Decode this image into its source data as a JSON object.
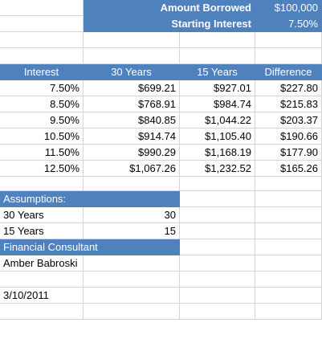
{
  "colors": {
    "header_fill": "#4f81bd",
    "header_text": "#ffffff",
    "gridline": "#d4d4d4"
  },
  "top": {
    "amount_label": "Amount Borrowed",
    "amount_value": "$100,000",
    "interest_label": "Starting Interest",
    "interest_value": "7.50%"
  },
  "table": {
    "headers": [
      "Interest",
      "30 Years",
      "15 Years",
      "Difference"
    ],
    "rows": [
      [
        "7.50%",
        "$699.21",
        "$927.01",
        "$227.80"
      ],
      [
        "8.50%",
        "$768.91",
        "$984.74",
        "$215.83"
      ],
      [
        "9.50%",
        "$840.85",
        "$1,044.22",
        "$203.37"
      ],
      [
        "10.50%",
        "$914.74",
        "$1,105.40",
        "$190.66"
      ],
      [
        "11.50%",
        "$990.29",
        "$1,168.19",
        "$177.90"
      ],
      [
        "12.50%",
        "$1,067.26",
        "$1,232.52",
        "$165.26"
      ]
    ]
  },
  "assumptions": {
    "title": "Assumptions:",
    "items": [
      {
        "label": "30 Years",
        "value": "30"
      },
      {
        "label": "15 Years",
        "value": "15"
      }
    ]
  },
  "consultant": {
    "title": "Financial Consultant",
    "name": "Amber Babroski"
  },
  "date": "3/10/2011"
}
